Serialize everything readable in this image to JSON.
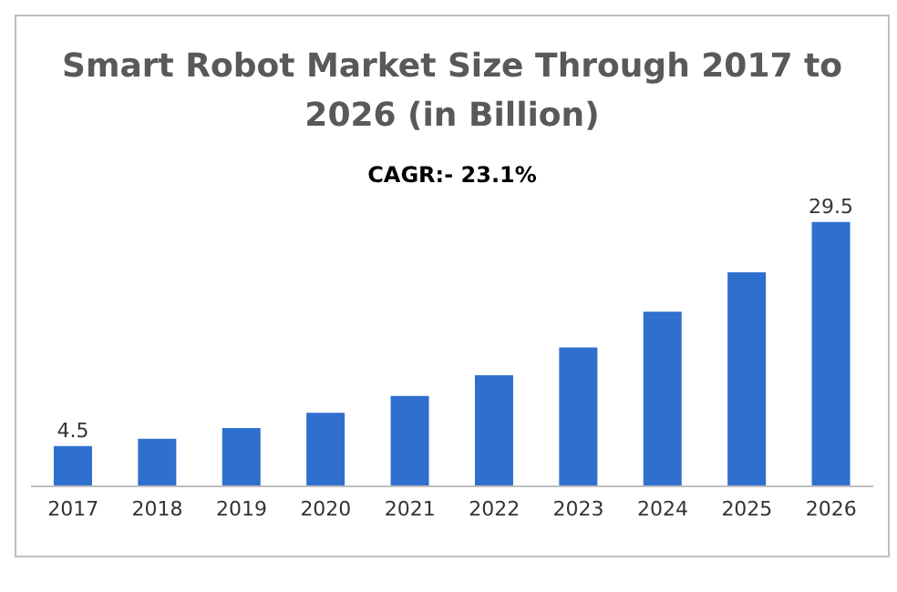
{
  "chart_data": {
    "type": "bar",
    "title": "Smart Robot Market Size Through 2017 to 2026 (in Billion)",
    "subtitle": "CAGR:- 23.1%",
    "categories": [
      "2017",
      "2018",
      "2019",
      "2020",
      "2021",
      "2022",
      "2023",
      "2024",
      "2025",
      "2026"
    ],
    "values": [
      4.5,
      5.3,
      6.5,
      8.2,
      10.1,
      12.4,
      15.5,
      19.5,
      23.9,
      29.5
    ],
    "value_labels": [
      "4.5",
      null,
      null,
      null,
      null,
      null,
      null,
      null,
      null,
      "29.5"
    ],
    "color": "#2f6fce"
  }
}
